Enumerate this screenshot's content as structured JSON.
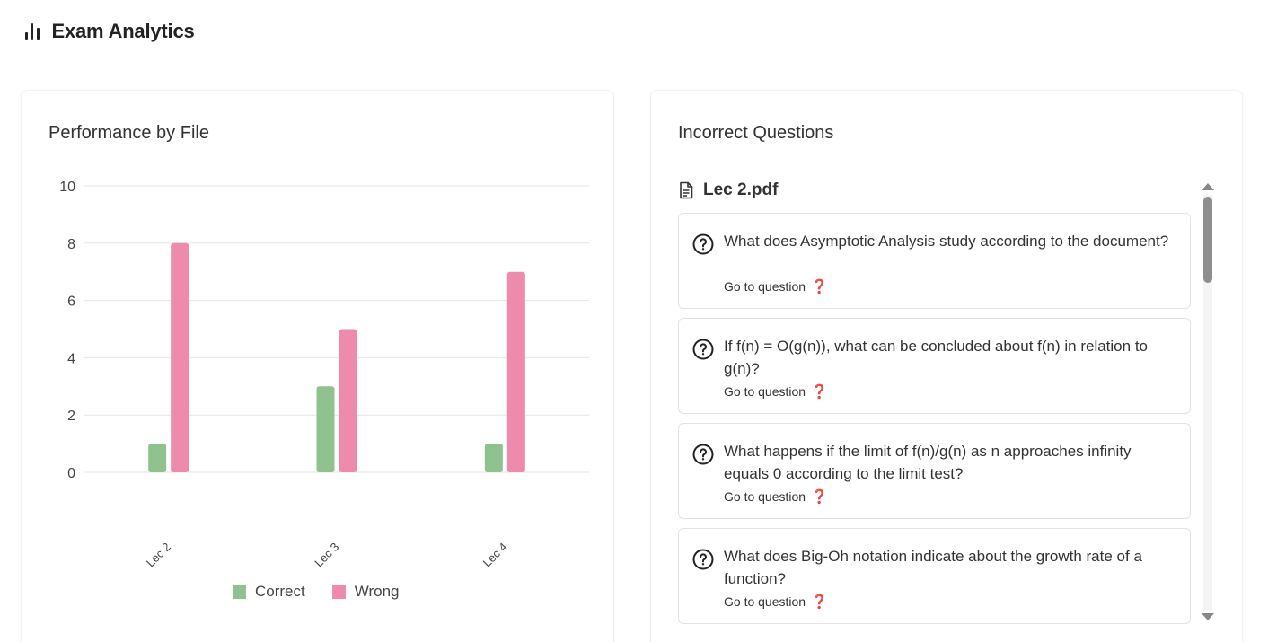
{
  "header": {
    "title": "Exam Analytics",
    "icon": "bar-chart-icon"
  },
  "performance": {
    "title": "Performance by File",
    "legend": [
      {
        "label": "Correct",
        "color": "#8fc28f"
      },
      {
        "label": "Wrong",
        "color": "#ee8aac"
      }
    ]
  },
  "chart_data": {
    "type": "bar",
    "categories": [
      "Lec 2",
      "Lec 3",
      "Lec 4"
    ],
    "series": [
      {
        "name": "Correct",
        "color": "#8fc28f",
        "values": [
          1,
          3,
          1
        ]
      },
      {
        "name": "Wrong",
        "color": "#ee8aac",
        "values": [
          8,
          5,
          7
        ]
      }
    ],
    "title": "Performance by File",
    "xlabel": "",
    "ylabel": "",
    "ylim": [
      0,
      10
    ],
    "yticks": [
      0,
      2,
      4,
      6,
      8,
      10
    ],
    "grid": true,
    "legend_position": "bottom"
  },
  "incorrect": {
    "title": "Incorrect Questions",
    "file": {
      "name": "Lec 2.pdf",
      "icon": "document-icon"
    },
    "questions": [
      {
        "text": "What does Asymptotic Analysis study according to the document?",
        "link": "Go to question",
        "link_icon": "❓"
      },
      {
        "text": "If f(n) = O(g(n)), what can be concluded about f(n) in relation to g(n)?",
        "link": "Go to question",
        "link_icon": "❓"
      },
      {
        "text": "What happens if the limit of f(n)/g(n) as n approaches infinity equals 0 according to the limit test?",
        "link": "Go to question",
        "link_icon": "❓"
      },
      {
        "text": "What does Big-Oh notation indicate about the growth rate of a function?",
        "link": "Go to question",
        "link_icon": "❓"
      }
    ]
  }
}
